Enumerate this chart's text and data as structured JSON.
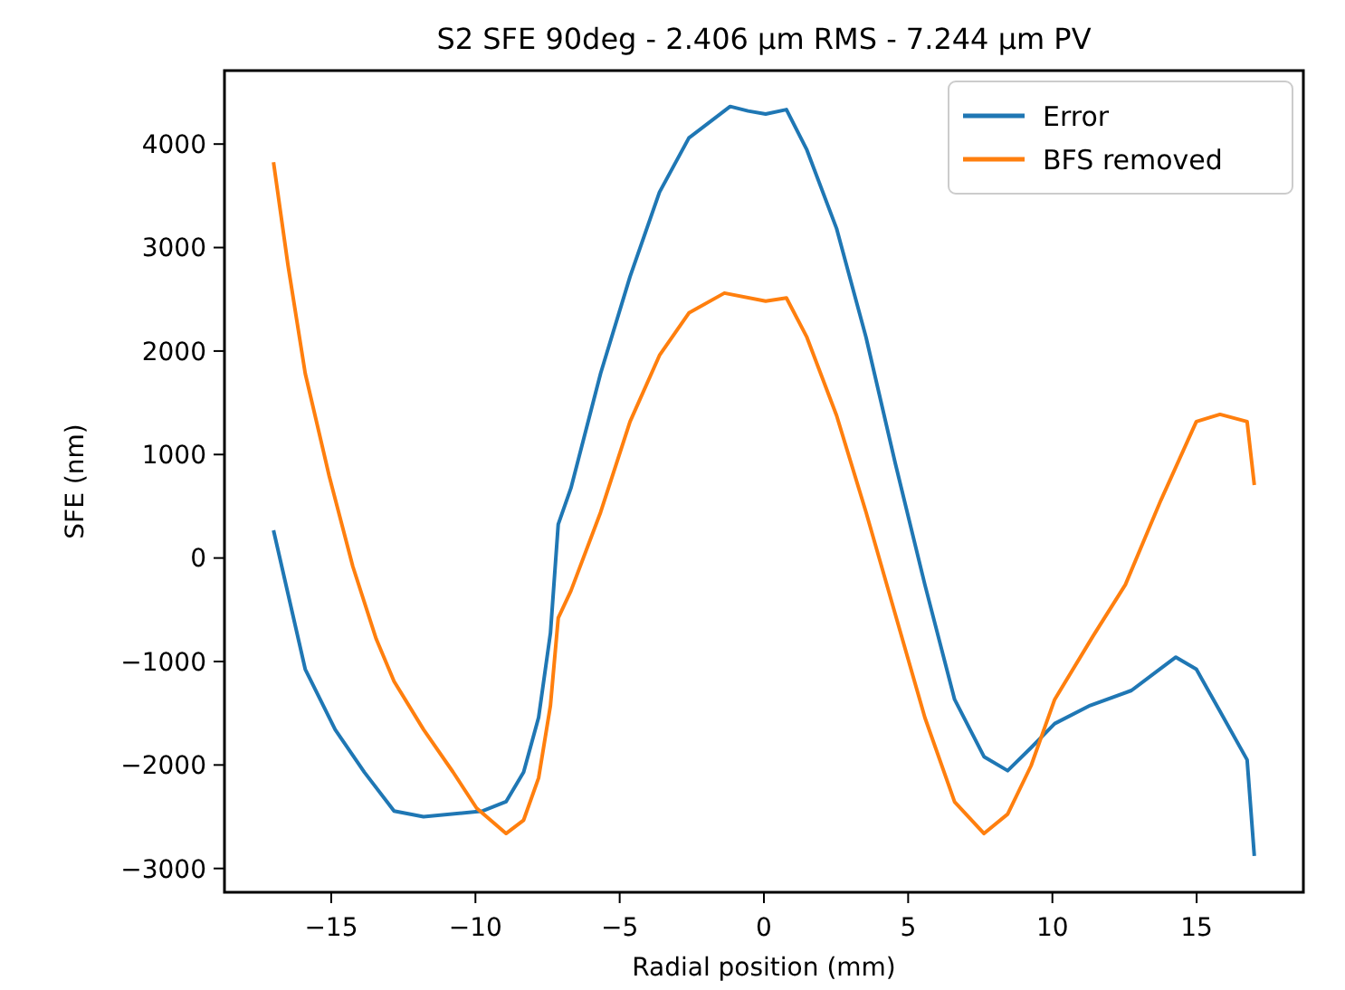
{
  "chart_data": {
    "type": "line",
    "title": "S2 SFE 90deg - 2.406 µm RMS - 7.244 µm PV",
    "xlabel": "Radial position (mm)",
    "ylabel": "SFE (nm)",
    "xlim": [
      -18.7,
      18.7
    ],
    "xticks": [
      -15,
      -10,
      -5,
      0,
      5,
      10,
      15
    ],
    "ylim": [
      -3230,
      4710
    ],
    "yticks": [
      -3000,
      -2000,
      -1000,
      0,
      1000,
      2000,
      3000,
      4000
    ],
    "legend": "top right",
    "grid": false,
    "line_style": "solid",
    "marker": "none",
    "series": [
      {
        "name": "Error",
        "color": "#1f77b4",
        "x": [
          -17,
          -15.9,
          -14.86,
          -13.85,
          -12.82,
          -11.8,
          -9.75,
          -8.94,
          -8.33,
          -7.81,
          -7.4,
          -7.13,
          -6.69,
          -5.66,
          -4.64,
          -3.62,
          -2.6,
          -1.17,
          -0.55,
          0.06,
          0.78,
          1.49,
          2.52,
          3.54,
          4.56,
          5.58,
          6.61,
          7.63,
          8.45,
          9.26,
          10.08,
          11.31,
          12.74,
          14.28,
          14.99,
          15.81,
          16.75,
          17
        ],
        "values": [
          268,
          -1075,
          -1660,
          -2070,
          -2445,
          -2500,
          -2445,
          -2355,
          -2070,
          -1540,
          -725,
          325,
          675,
          1785,
          2720,
          3535,
          4060,
          4363,
          4320,
          4290,
          4333,
          3943,
          3183,
          2133,
          908,
          -258,
          -1367,
          -1920,
          -2055,
          -1833,
          -1600,
          -1425,
          -1280,
          -958,
          -1075,
          -1482,
          -1950,
          -2880
        ]
      },
      {
        "name": "BFS removed",
        "color": "#ff7f0e",
        "x": [
          -17,
          -16.5,
          -15.9,
          -15.07,
          -14.25,
          -13.44,
          -12.82,
          -11.8,
          -10.78,
          -9.96,
          -8.94,
          -8.33,
          -7.81,
          -7.4,
          -7.13,
          -6.69,
          -5.66,
          -4.64,
          -3.62,
          -2.6,
          -1.37,
          0.06,
          0.78,
          1.49,
          2.52,
          3.54,
          4.56,
          5.58,
          6.61,
          7.63,
          8.45,
          9.26,
          10.08,
          11.41,
          12.53,
          13.76,
          14.99,
          15.81,
          16.75,
          17
        ],
        "values": [
          3825,
          2833,
          1783,
          793,
          -82,
          -782,
          -1192,
          -1657,
          -2067,
          -2417,
          -2662,
          -2533,
          -2125,
          -1425,
          -580,
          -317,
          443,
          1318,
          1958,
          2368,
          2560,
          2483,
          2513,
          2133,
          1376,
          443,
          -550,
          -1542,
          -2357,
          -2662,
          -2475,
          -2008,
          -1367,
          -754,
          -258,
          558,
          1318,
          1388,
          1318,
          705
        ]
      }
    ]
  }
}
